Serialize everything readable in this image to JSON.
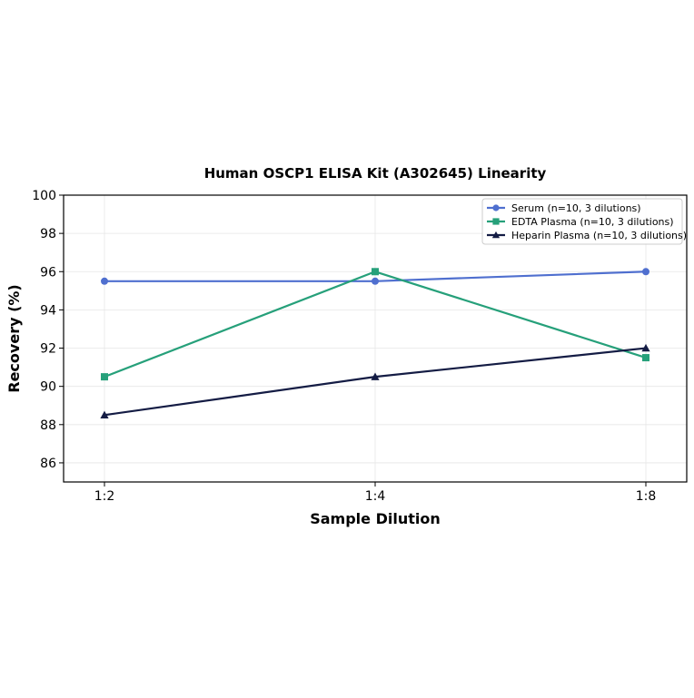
{
  "chart_data": {
    "type": "line",
    "title": "Human OSCP1 ELISA Kit (A302645) Linearity",
    "xlabel": "Sample Dilution",
    "ylabel": "Recovery (%)",
    "categories": [
      "1:2",
      "1:4",
      "1:8"
    ],
    "ylim": [
      85,
      100
    ],
    "yticks": [
      86,
      88,
      90,
      92,
      94,
      96,
      98,
      100
    ],
    "grid": true,
    "legend_position": "top-right",
    "series": [
      {
        "name": "Serum (n=10, 3 dilutions)",
        "values": [
          95.5,
          95.5,
          96.0
        ],
        "color": "#4f6fcf",
        "marker": "circle"
      },
      {
        "name": "EDTA Plasma (n=10, 3 dilutions)",
        "values": [
          90.5,
          96.0,
          91.5
        ],
        "color": "#26a07a",
        "marker": "square"
      },
      {
        "name": "Heparin Plasma (n=10, 3 dilutions)",
        "values": [
          88.5,
          90.5,
          92.0
        ],
        "color": "#141c44",
        "marker": "triangle"
      }
    ]
  }
}
